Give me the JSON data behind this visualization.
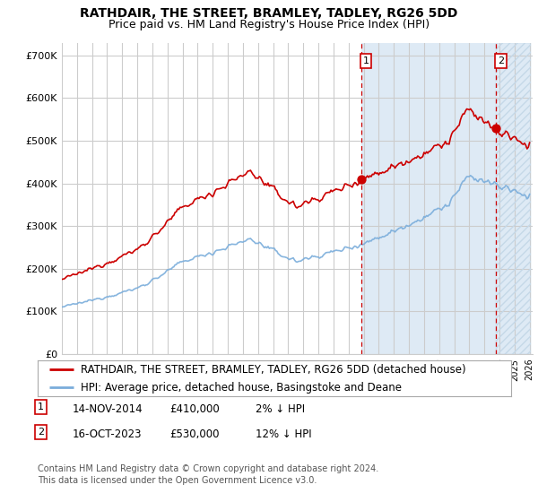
{
  "title": "RATHDAIR, THE STREET, BRAMLEY, TADLEY, RG26 5DD",
  "subtitle": "Price paid vs. HM Land Registry's House Price Index (HPI)",
  "ylim": [
    0,
    730000
  ],
  "yticks": [
    0,
    100000,
    200000,
    300000,
    400000,
    500000,
    600000,
    700000
  ],
  "ytick_labels": [
    "£0",
    "£100K",
    "£200K",
    "£300K",
    "£400K",
    "£500K",
    "£600K",
    "£700K"
  ],
  "hpi_color": "#7aaddb",
  "price_color": "#cc0000",
  "dot_color": "#cc0000",
  "vline_color": "#cc0000",
  "shade_color": "#deeaf5",
  "hatch_color": "#c5d8e8",
  "grid_color": "#cccccc",
  "background_color": "#ffffff",
  "sale1_year": 2014.87,
  "sale1_price": 410000,
  "sale2_year": 2023.79,
  "sale2_price": 530000,
  "legend1": "RATHDAIR, THE STREET, BRAMLEY, TADLEY, RG26 5DD (detached house)",
  "legend2": "HPI: Average price, detached house, Basingstoke and Deane",
  "note1_date": "14-NOV-2014",
  "note1_price": "£410,000",
  "note1_hpi": "2% ↓ HPI",
  "note2_date": "16-OCT-2023",
  "note2_price": "£530,000",
  "note2_hpi": "12% ↓ HPI",
  "footer": "Contains HM Land Registry data © Crown copyright and database right 2024.\nThis data is licensed under the Open Government Licence v3.0.",
  "title_fontsize": 10,
  "subtitle_fontsize": 9,
  "tick_fontsize": 8,
  "legend_fontsize": 8.5,
  "note_fontsize": 8.5,
  "footer_fontsize": 7
}
